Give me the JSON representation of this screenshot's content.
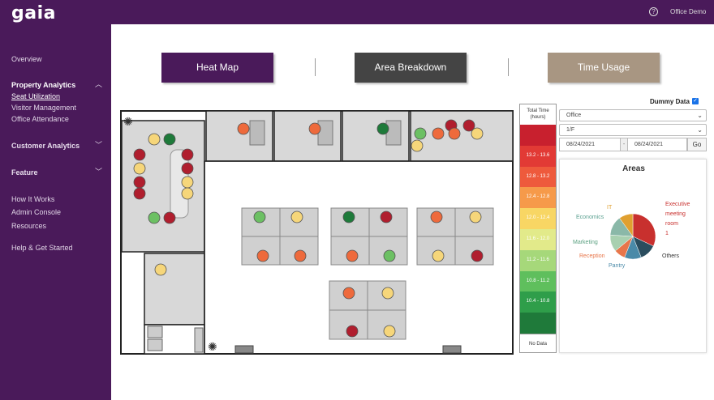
{
  "brand": "gaia",
  "header": {
    "account": "Office Demo",
    "help_icon": "?"
  },
  "nav": {
    "overview": "Overview",
    "property_analytics": "Property Analytics",
    "seat_utilization": "Seat Utilization",
    "visitor_management": "Visitor Management",
    "office_attendance": "Office Attendance",
    "customer_analytics": "Customer Analytics",
    "feature": "Feature",
    "how_it_works": "How It Works",
    "admin_console": "Admin Console",
    "resources": "Resources",
    "help": "Help & Get Started"
  },
  "tabs": [
    {
      "label": "Heat Map",
      "color": "#4a1a5a"
    },
    {
      "label": "Area Breakdown",
      "color": "#444444"
    },
    {
      "label": "Time Usage",
      "color": "#a89682"
    }
  ],
  "legend": {
    "title_line1": "Total Time",
    "title_line2": "(hours)",
    "rows": [
      {
        "label": "",
        "color": "#c8202e"
      },
      {
        "label": "13.2 - 13.6",
        "color": "#e23a35"
      },
      {
        "label": "12.8 - 13.2",
        "color": "#ee5a3c"
      },
      {
        "label": "12.4 - 12.8",
        "color": "#f69a4a"
      },
      {
        "label": "12.0 - 12.4",
        "color": "#f8d664"
      },
      {
        "label": "11.6 - 12.0",
        "color": "#e2ea8a"
      },
      {
        "label": "11.2 - 11.6",
        "color": "#a6d87a"
      },
      {
        "label": "10.8 - 11.2",
        "color": "#5fbf5d"
      },
      {
        "label": "10.4 - 10.8",
        "color": "#2f9e4a"
      },
      {
        "label": "",
        "color": "#1f7a3a"
      }
    ],
    "no_data": "No Data"
  },
  "controls": {
    "dummy_data_label": "Dummy Data",
    "dummy_checked": "✓",
    "property": "Office",
    "floor": "1/F",
    "date_from": "08/24/2021",
    "date_to": "08/24/2021",
    "go": "Go"
  },
  "areas_chart": {
    "title": "Areas",
    "chart_data": {
      "type": "pie",
      "slices": [
        {
          "label": "Executive meeting room 1",
          "value": 32,
          "color": "#c8302e"
        },
        {
          "label": "Others",
          "value": 12,
          "color": "#2a4d5e"
        },
        {
          "label": "Pantry",
          "value": 12,
          "color": "#4a8aa8"
        },
        {
          "label": "Reception",
          "value": 8,
          "color": "#e8764a"
        },
        {
          "label": "Marketing",
          "value": 12,
          "color": "#a8d0b0"
        },
        {
          "label": "Economics",
          "value": 14,
          "color": "#8ab8a8"
        },
        {
          "label": "IT",
          "value": 10,
          "color": "#e0a030"
        }
      ]
    },
    "labels": {
      "exec1": "Executive",
      "exec2": "meeting",
      "exec3": "room",
      "exec4": "1",
      "others": "Others",
      "pantry": "Pantry",
      "reception": "Reception",
      "marketing": "Marketing",
      "economics": "Economics",
      "it": "IT"
    }
  },
  "seat_colors": {
    "red": "#b01e2e",
    "orange": "#ee6a3c",
    "yellow": "#f6d67a",
    "green": "#6cc063",
    "darkgreen": "#1e7a3a"
  },
  "seats": [
    {
      "c": "yellow"
    },
    {
      "c": "darkgreen"
    },
    {
      "c": "red"
    },
    {
      "c": "red"
    },
    {
      "c": "yellow"
    },
    {
      "c": "red"
    },
    {
      "c": "red"
    },
    {
      "c": "yellow"
    },
    {
      "c": "red"
    },
    {
      "c": "yellow"
    },
    {
      "c": "green"
    },
    {
      "c": "red"
    },
    {
      "c": "orange"
    },
    {
      "c": "orange"
    },
    {
      "c": "darkgreen"
    },
    {
      "c": "red"
    },
    {
      "c": "red"
    },
    {
      "c": "green"
    },
    {
      "c": "orange"
    },
    {
      "c": "orange"
    },
    {
      "c": "yellow"
    },
    {
      "c": "yellow"
    },
    {
      "c": "green"
    },
    {
      "c": "yellow"
    },
    {
      "c": "darkgreen"
    },
    {
      "c": "red"
    },
    {
      "c": "orange"
    },
    {
      "c": "yellow"
    },
    {
      "c": "orange"
    },
    {
      "c": "orange"
    },
    {
      "c": "orange"
    },
    {
      "c": "green"
    },
    {
      "c": "yellow"
    },
    {
      "c": "red"
    },
    {
      "c": "orange"
    },
    {
      "c": "yellow"
    },
    {
      "c": "red"
    },
    {
      "c": "yellow"
    },
    {
      "c": "yellow"
    }
  ]
}
